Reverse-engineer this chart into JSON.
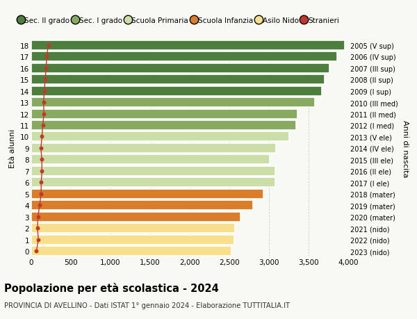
{
  "ages": [
    0,
    1,
    2,
    3,
    4,
    5,
    6,
    7,
    8,
    9,
    10,
    11,
    12,
    13,
    14,
    15,
    16,
    17,
    18
  ],
  "values": [
    2530,
    2560,
    2570,
    2640,
    2800,
    2930,
    3080,
    3080,
    3010,
    3090,
    3250,
    3340,
    3360,
    3580,
    3670,
    3700,
    3760,
    3860,
    3960
  ],
  "right_labels": [
    "2023 (nido)",
    "2022 (nido)",
    "2021 (nido)",
    "2020 (mater)",
    "2019 (mater)",
    "2018 (mater)",
    "2017 (I ele)",
    "2016 (II ele)",
    "2015 (III ele)",
    "2014 (IV ele)",
    "2013 (V ele)",
    "2012 (I med)",
    "2011 (II med)",
    "2010 (III med)",
    "2009 (I sup)",
    "2008 (II sup)",
    "2007 (III sup)",
    "2006 (IV sup)",
    "2005 (V sup)"
  ],
  "bar_colors": [
    "#f7df8c",
    "#f7df8c",
    "#f7df8c",
    "#d97d2a",
    "#d97d2a",
    "#d97d2a",
    "#ccdea8",
    "#ccdea8",
    "#ccdea8",
    "#ccdea8",
    "#ccdea8",
    "#88aa60",
    "#88aa60",
    "#88aa60",
    "#4e7e3e",
    "#4e7e3e",
    "#4e7e3e",
    "#4e7e3e",
    "#4e7e3e"
  ],
  "stranieri_values": [
    65,
    90,
    78,
    85,
    105,
    125,
    125,
    135,
    132,
    122,
    135,
    145,
    160,
    155,
    165,
    175,
    188,
    195,
    215
  ],
  "title": "Popolazione per età scolastica - 2024",
  "subtitle": "PROVINCIA DI AVELLINO - Dati ISTAT 1° gennaio 2024 - Elaborazione TUTTITALIA.IT",
  "ylabel_left": "Età alunni",
  "ylabel_right": "Anni di nascita",
  "xlim": [
    0,
    4000
  ],
  "xticks": [
    0,
    500,
    1000,
    1500,
    2000,
    2500,
    3000,
    3500,
    4000
  ],
  "xtick_labels": [
    "0",
    "500",
    "1,000",
    "1,500",
    "2,000",
    "2,500",
    "3,000",
    "3,500",
    "4,000"
  ],
  "background_color": "#f9f9f4",
  "legend_labels": [
    "Sec. II grado",
    "Sec. I grado",
    "Scuola Primaria",
    "Scuola Infanzia",
    "Asilo Nido",
    "Stranieri"
  ],
  "legend_colors": [
    "#4e7e3e",
    "#88aa60",
    "#ccdea8",
    "#d97d2a",
    "#f7df8c",
    "#c0392b"
  ],
  "stranieri_color": "#c0392b",
  "grid_color": "#cccccc"
}
